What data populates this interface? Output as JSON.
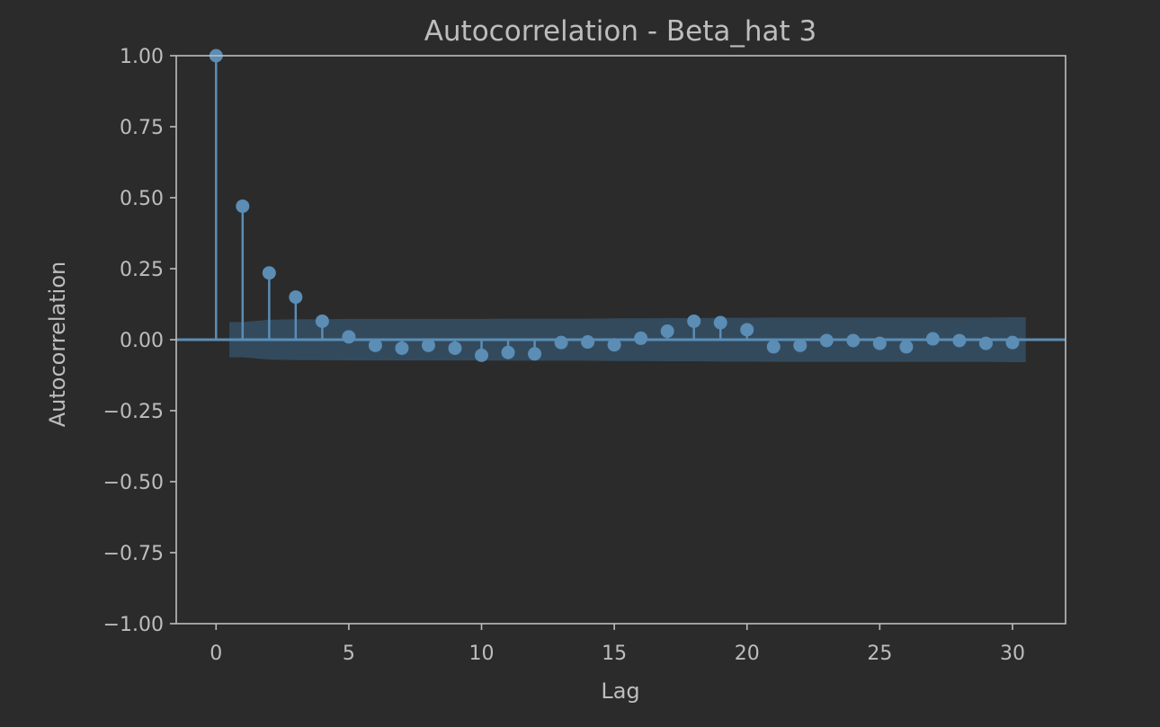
{
  "chart_data": {
    "type": "scatter",
    "subtype": "stem",
    "title": "Autocorrelation - Beta_hat 3",
    "xlabel": "Lag",
    "ylabel": "Autocorrelation",
    "xlim": [
      -1.5,
      32
    ],
    "ylim": [
      -1.0,
      1.0
    ],
    "xticks": [
      0,
      5,
      10,
      15,
      20,
      25,
      30
    ],
    "xtick_labels": [
      "0",
      "5",
      "10",
      "15",
      "20",
      "25",
      "30"
    ],
    "yticks": [
      1.0,
      0.75,
      0.5,
      0.25,
      0.0,
      -0.25,
      -0.5,
      -0.75,
      -1.0
    ],
    "ytick_labels": [
      "1.00",
      "0.75",
      "0.50",
      "0.25",
      "0.00",
      "−0.25",
      "−0.50",
      "−0.75",
      "−1.00"
    ],
    "grid": false,
    "series": [
      {
        "lags": [
          0,
          1,
          2,
          3,
          4,
          5,
          6,
          7,
          8,
          9,
          10,
          11,
          12,
          13,
          14,
          15,
          16,
          17,
          18,
          19,
          20,
          21,
          22,
          23,
          24,
          25,
          26,
          27,
          28,
          29,
          30
        ],
        "values": [
          1.0,
          0.47,
          0.235,
          0.15,
          0.065,
          0.01,
          -0.02,
          -0.03,
          -0.02,
          -0.03,
          -0.055,
          -0.045,
          -0.05,
          -0.01,
          -0.008,
          -0.018,
          0.005,
          0.03,
          0.065,
          0.06,
          0.035,
          -0.025,
          -0.02,
          -0.003,
          -0.003,
          -0.013,
          -0.025,
          0.003,
          -0.003,
          -0.013,
          -0.01
        ]
      }
    ],
    "confidence_band": {
      "lags": [
        0.5,
        1,
        2,
        3,
        4,
        5,
        6,
        7,
        8,
        9,
        10,
        11,
        12,
        13,
        14,
        15,
        16,
        17,
        18,
        19,
        20,
        21,
        22,
        23,
        24,
        25,
        26,
        27,
        28,
        29,
        30,
        30.5
      ],
      "upper": [
        0.062,
        0.062,
        0.07,
        0.072,
        0.072,
        0.073,
        0.073,
        0.073,
        0.073,
        0.073,
        0.073,
        0.074,
        0.074,
        0.074,
        0.074,
        0.075,
        0.075,
        0.076,
        0.076,
        0.077,
        0.077,
        0.078,
        0.078,
        0.078,
        0.078,
        0.078,
        0.078,
        0.078,
        0.078,
        0.078,
        0.079,
        0.079
      ]
    },
    "colors": {
      "background": "#2b2b2b",
      "axes": "#bdbdbd",
      "text": "#bdbdbd",
      "marker": "#5b8db5",
      "stem": "#5b8db5",
      "zero_line": "#5b8db5",
      "band": "#355066"
    }
  }
}
